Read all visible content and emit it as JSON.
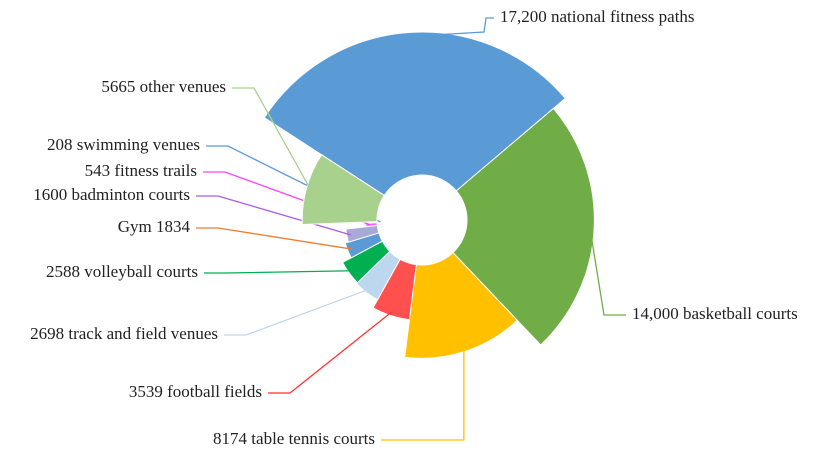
{
  "chart_data": {
    "type": "rose",
    "categories": [
      "17,200 national fitness paths",
      "14,000 basketball courts",
      "8174 table tennis courts",
      "3539 football fields",
      "2698 track and field venues",
      "2588 volleyball courts",
      "Gym 1834",
      "1600 badminton courts",
      "543 fitness trails",
      "208 swimming venues",
      "5665 other venues"
    ],
    "values": [
      17200,
      14000,
      8174,
      3539,
      2698,
      2588,
      1834,
      1600,
      543,
      208,
      5665
    ],
    "colors": [
      "#5b9bd5",
      "#70ad47",
      "#ffc000",
      "#ff5050",
      "#bdd7ee",
      "#00b050",
      "#5b9bd5",
      "#a9a9d8",
      "#ff66ff",
      "#5b9bd5",
      "#a9d18e"
    ],
    "leader_colors": [
      "#5b9bd5",
      "#70ad47",
      "#ffc000",
      "#ff3333",
      "#bdd7ee",
      "#00b050",
      "#ed7d31",
      "#b05ce0",
      "#ff40ff",
      "#5b9bd5",
      "#a9d18e"
    ]
  }
}
